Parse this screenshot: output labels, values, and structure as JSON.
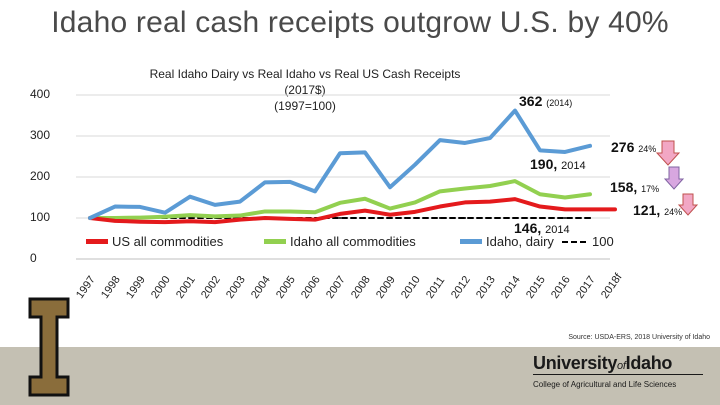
{
  "slide": {
    "title": "Idaho real cash receipts outgrow U.S. by 40%",
    "source": "Source: USDA-ERS, 2018 University of Idaho",
    "logo_letter": "I",
    "university_name": "University",
    "university_of": "of",
    "university_state": "Idaho",
    "college": "College of Agricultural and Life Sciences"
  },
  "colors": {
    "idaho_dairy": "#5b9bd5",
    "idaho_all": "#92d050",
    "us_all": "#e41a1c",
    "baseline": "#000000"
  },
  "chart_data": {
    "type": "line",
    "title": "Real Idaho Dairy vs Real Idaho  vs Real US Cash Receipts (2017$)",
    "subtitle": "(1997=100)",
    "categories": [
      "1997",
      "1998",
      "1999",
      "2000",
      "2001",
      "2002",
      "2003",
      "2004",
      "2005",
      "2006",
      "2007",
      "2008",
      "2009",
      "2010",
      "2011",
      "2012",
      "2013",
      "2014",
      "2015",
      "2016",
      "2017",
      "2018f"
    ],
    "ylim": [
      0,
      400
    ],
    "yticks": [
      "0",
      "100",
      "200",
      "300",
      "400"
    ],
    "series": [
      {
        "name": "Idaho, dairy",
        "values": [
          100,
          128,
          127,
          113,
          152,
          132,
          140,
          187,
          188,
          165,
          258,
          260,
          175,
          230,
          290,
          283,
          295,
          362,
          265,
          261,
          276,
          null
        ]
      },
      {
        "name": "Idaho all commodities",
        "values": [
          100,
          100,
          101,
          103,
          107,
          104,
          106,
          116,
          116,
          114,
          137,
          147,
          123,
          138,
          165,
          172,
          178,
          190,
          158,
          150,
          158,
          null
        ]
      },
      {
        "name": "US all commodities",
        "values": [
          100,
          93,
          91,
          90,
          92,
          90,
          96,
          100,
          98,
          96,
          110,
          118,
          108,
          115,
          128,
          138,
          140,
          146,
          128,
          121,
          121,
          121
        ]
      },
      {
        "name": "100",
        "values": [
          100,
          100,
          100,
          100,
          100,
          100,
          100,
          100,
          100,
          100,
          100,
          100,
          100,
          100,
          100,
          100,
          100,
          100,
          100,
          100,
          100,
          null
        ]
      }
    ],
    "annotations": {
      "dairy_peak": {
        "value": "362",
        "note": "(2014)"
      },
      "dairy_2017": {
        "value": "276",
        "pct": "24%"
      },
      "idaho_peak": {
        "value": "190,",
        "note": "2014"
      },
      "idaho_2017": {
        "value": "158,",
        "pct": "17%"
      },
      "us_peak": {
        "value": "146,",
        "note": "2014"
      },
      "us_2017": {
        "value": "121,",
        "pct": "24%"
      }
    },
    "legend": {
      "us_all": "US all commodities",
      "idaho_all": "Idaho all commodities",
      "idaho_dairy": "Idaho, dairy",
      "baseline": "100"
    }
  }
}
